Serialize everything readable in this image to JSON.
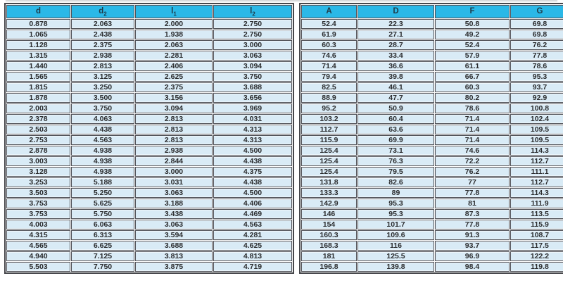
{
  "table": {
    "description_colors": {
      "header_bg": "#2bb8e7",
      "row_bg": "#d9ebf6",
      "grid_line": "#515258",
      "outer_frame": "#46474b",
      "header_text": "#1f3b49",
      "cell_text": "#2b2c2e"
    },
    "columns": [
      {
        "label": "d",
        "sub": ""
      },
      {
        "label": "d",
        "sub": "2"
      },
      {
        "label": "l",
        "sub": "1"
      },
      {
        "label": "l",
        "sub": "2"
      },
      {
        "label": "A",
        "sub": ""
      },
      {
        "label": "D",
        "sub": ""
      },
      {
        "label": "F",
        "sub": ""
      },
      {
        "label": "G",
        "sub": ""
      }
    ],
    "rows": [
      [
        "0.878",
        "2.063",
        "2.000",
        "2.750",
        "52.4",
        "22.3",
        "50.8",
        "69.8"
      ],
      [
        "1.065",
        "2.438",
        "1.938",
        "2.750",
        "61.9",
        "27.1",
        "49.2",
        "69.8"
      ],
      [
        "1.128",
        "2.375",
        "2.063",
        "3.000",
        "60.3",
        "28.7",
        "52.4",
        "76.2"
      ],
      [
        "1.315",
        "2.938",
        "2.281",
        "3.063",
        "74.6",
        "33.4",
        "57.9",
        "77.8"
      ],
      [
        "1.440",
        "2.813",
        "2.406",
        "3.094",
        "71.4",
        "36.6",
        "61.1",
        "78.6"
      ],
      [
        "1.565",
        "3.125",
        "2.625",
        "3.750",
        "79.4",
        "39.8",
        "66.7",
        "95.3"
      ],
      [
        "1.815",
        "3.250",
        "2.375",
        "3.688",
        "82.5",
        "46.1",
        "60.3",
        "93.7"
      ],
      [
        "1.878",
        "3.500",
        "3.156",
        "3.656",
        "88.9",
        "47.7",
        "80.2",
        "92.9"
      ],
      [
        "2.003",
        "3.750",
        "3.094",
        "3.969",
        "95.2",
        "50.9",
        "78.6",
        "100.8"
      ],
      [
        "2.378",
        "4.063",
        "2.813",
        "4.031",
        "103.2",
        "60.4",
        "71.4",
        "102.4"
      ],
      [
        "2.503",
        "4.438",
        "2.813",
        "4.313",
        "112.7",
        "63.6",
        "71.4",
        "109.5"
      ],
      [
        "2.753",
        "4.563",
        "2.813",
        "4.313",
        "115.9",
        "69.9",
        "71.4",
        "109.5"
      ],
      [
        "2.878",
        "4.938",
        "2.938",
        "4.500",
        "125.4",
        "73.1",
        "74.6",
        "114.3"
      ],
      [
        "3.003",
        "4.938",
        "2.844",
        "4.438",
        "125.4",
        "76.3",
        "72.2",
        "112.7"
      ],
      [
        "3.128",
        "4.938",
        "3.000",
        "4.375",
        "125.4",
        "79.5",
        "76.2",
        "111.1"
      ],
      [
        "3.253",
        "5.188",
        "3.031",
        "4.438",
        "131.8",
        "82.6",
        "77",
        "112.7"
      ],
      [
        "3.503",
        "5.250",
        "3.063",
        "4.500",
        "133.3",
        "89",
        "77.8",
        "114.3"
      ],
      [
        "3.753",
        "5.625",
        "3.188",
        "4.406",
        "142.9",
        "95.3",
        "81",
        "111.9"
      ],
      [
        "3.753",
        "5.750",
        "3.438",
        "4.469",
        "146",
        "95.3",
        "87.3",
        "113.5"
      ],
      [
        "4.003",
        "6.063",
        "3.063",
        "4.563",
        "154",
        "101.7",
        "77.8",
        "115.9"
      ],
      [
        "4.315",
        "6.313",
        "3.594",
        "4.281",
        "160.3",
        "109.6",
        "91.3",
        "108.7"
      ],
      [
        "4.565",
        "6.625",
        "3.688",
        "4.625",
        "168.3",
        "116",
        "93.7",
        "117.5"
      ],
      [
        "4.940",
        "7.125",
        "3.813",
        "4.813",
        "181",
        "125.5",
        "96.9",
        "122.2"
      ],
      [
        "5.503",
        "7.750",
        "3.875",
        "4.719",
        "196.8",
        "139.8",
        "98.4",
        "119.8"
      ]
    ]
  }
}
